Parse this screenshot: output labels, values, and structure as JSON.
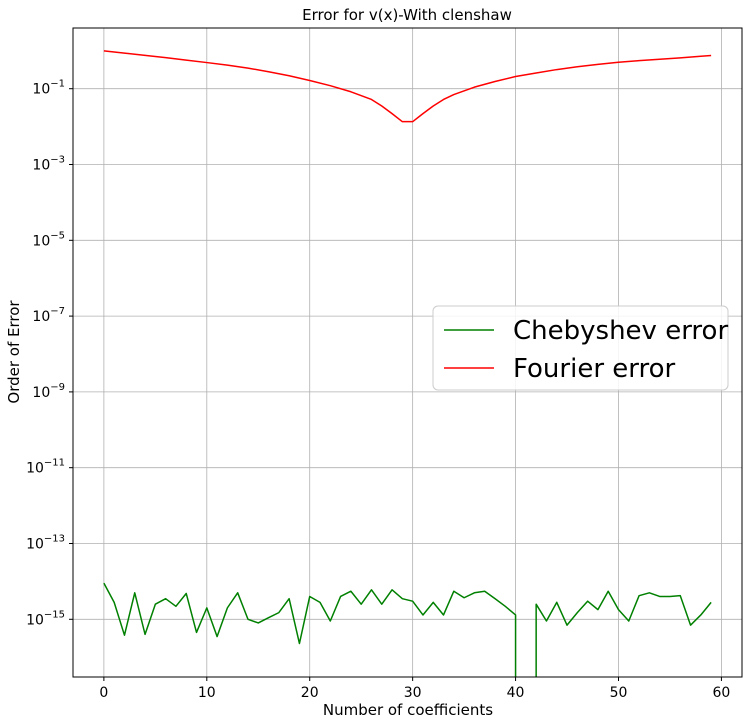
{
  "chart_data": {
    "type": "line",
    "title": "Error for v(x)-With clenshaw",
    "xlabel": "Number of coefficients",
    "ylabel": "Order of Error",
    "yscale": "log",
    "xlim": [
      -3,
      62
    ],
    "ylim": [
      3e-17,
      4
    ],
    "xticks": [
      0,
      10,
      20,
      30,
      40,
      50,
      60
    ],
    "yticks": [
      {
        "value": 0.1,
        "base": "10",
        "exp": "−1"
      },
      {
        "value": 0.001,
        "base": "10",
        "exp": "−3"
      },
      {
        "value": 1e-05,
        "base": "10",
        "exp": "−5"
      },
      {
        "value": 1e-07,
        "base": "10",
        "exp": "−7"
      },
      {
        "value": 1e-09,
        "base": "10",
        "exp": "−9"
      },
      {
        "value": 1e-11,
        "base": "10",
        "exp": "−11"
      },
      {
        "value": 1e-13,
        "base": "10",
        "exp": "−13"
      },
      {
        "value": 1e-15,
        "base": "10",
        "exp": "−15"
      }
    ],
    "grid": true,
    "legend_position": "center-right",
    "series": [
      {
        "name": "Chebyshev error",
        "color": "#008000",
        "x": [
          0,
          1,
          2,
          3,
          4,
          5,
          6,
          7,
          8,
          9,
          10,
          11,
          12,
          13,
          14,
          15,
          16,
          17,
          18,
          19,
          20,
          21,
          22,
          23,
          24,
          25,
          26,
          27,
          28,
          29,
          30,
          31,
          32,
          33,
          34,
          35,
          36,
          37,
          38,
          39,
          40,
          41,
          42,
          43,
          44,
          45,
          46,
          47,
          48,
          49,
          50,
          51,
          52,
          53,
          54,
          55,
          56,
          57,
          58,
          59
        ],
        "y": [
          9e-15,
          2.8e-15,
          3.8e-16,
          5e-15,
          4e-16,
          2.5e-15,
          3.5e-15,
          2.2e-15,
          4.8e-15,
          4.5e-16,
          2e-15,
          3.5e-16,
          2e-15,
          5e-15,
          1e-15,
          8e-16,
          1.1e-15,
          1.5e-15,
          3.5e-15,
          2.3e-16,
          4e-15,
          2.8e-15,
          9e-16,
          4e-15,
          5.5e-15,
          2.5e-15,
          6e-15,
          2.5e-15,
          6e-15,
          3.5e-15,
          3e-15,
          1.3e-15,
          2.8e-15,
          1.3e-15,
          5.5e-15,
          3.7e-15,
          5e-15,
          5.5e-15,
          3.5e-15,
          2.2e-15,
          1.3e-15,
          null,
          2.5e-15,
          9e-16,
          2.8e-15,
          7e-16,
          1.5e-15,
          3e-15,
          1.8e-15,
          5.5e-15,
          1.8e-15,
          9e-16,
          4.2e-15,
          5e-15,
          4e-15,
          4e-15,
          4.2e-15,
          7e-16,
          1.3e-15,
          2.8e-15
        ]
      },
      {
        "name": "Fourier error",
        "color": "#ff0000",
        "x": [
          0,
          2,
          4,
          6,
          8,
          10,
          12,
          14,
          16,
          18,
          20,
          22,
          24,
          26,
          27,
          28,
          29,
          30,
          31,
          32,
          33,
          34,
          36,
          38,
          40,
          42,
          44,
          46,
          48,
          50,
          52,
          54,
          56,
          58,
          59
        ],
        "y": [
          1.0,
          0.87,
          0.76,
          0.66,
          0.57,
          0.49,
          0.42,
          0.35,
          0.28,
          0.22,
          0.165,
          0.12,
          0.083,
          0.052,
          0.035,
          0.022,
          0.0135,
          0.0135,
          0.022,
          0.035,
          0.052,
          0.07,
          0.11,
          0.155,
          0.21,
          0.26,
          0.32,
          0.38,
          0.44,
          0.5,
          0.55,
          0.6,
          0.65,
          0.72,
          0.75
        ]
      }
    ]
  }
}
